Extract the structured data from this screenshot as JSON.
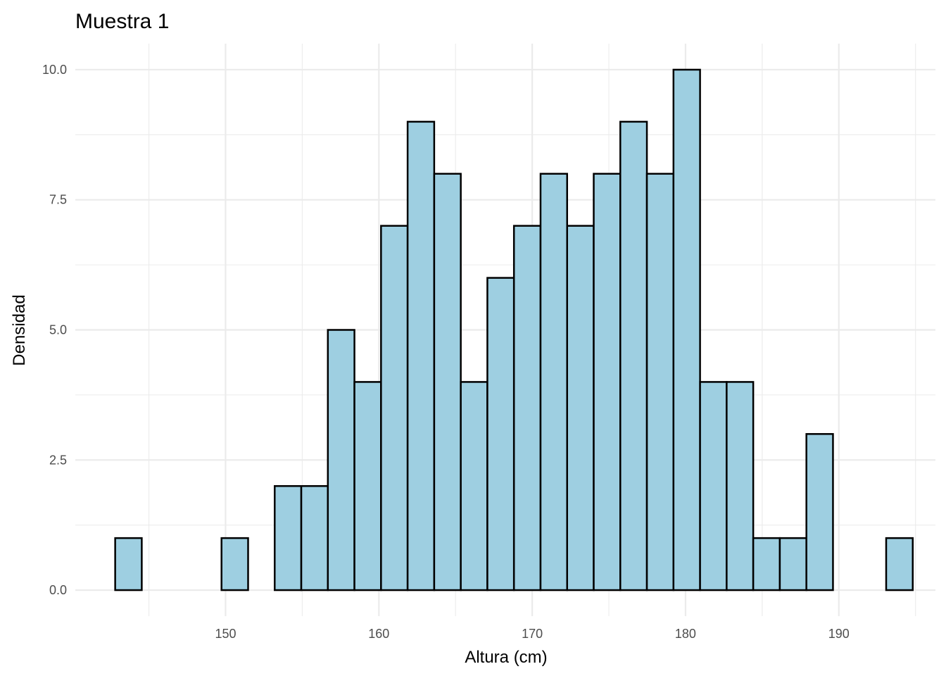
{
  "chart_data": {
    "type": "bar",
    "title": "Muestra 1",
    "xlabel": "Altura (cm)",
    "ylabel": "Densidad",
    "bin_start": 142.8,
    "bin_width": 1.734,
    "values": [
      1,
      0,
      0,
      0,
      1,
      0,
      2,
      2,
      5,
      4,
      7,
      9,
      8,
      4,
      6,
      7,
      8,
      7,
      8,
      9,
      8,
      10,
      4,
      4,
      1,
      1,
      3,
      0,
      0,
      1
    ],
    "xlim": [
      140.2,
      196.3
    ],
    "ylim": [
      -0.5,
      10.5
    ],
    "x_ticks": [
      150,
      160,
      170,
      180,
      190
    ],
    "x_tick_labels": [
      "150",
      "160",
      "170",
      "180",
      "190"
    ],
    "y_ticks": [
      0,
      2.5,
      5,
      7.5,
      10
    ],
    "y_tick_labels": [
      "0.0",
      "2.5",
      "5.0",
      "7.5",
      "10.0"
    ],
    "bar_fill": "#9ecfe1",
    "bar_stroke": "#000000",
    "grid": true,
    "legend": "none"
  }
}
